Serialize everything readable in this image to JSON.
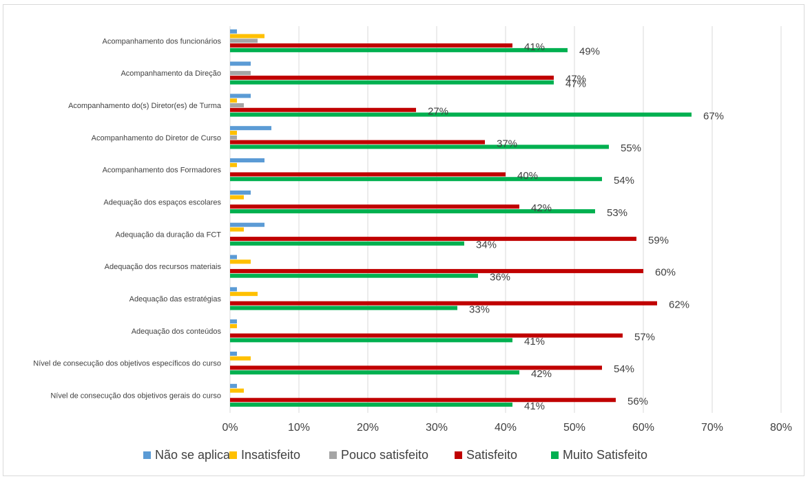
{
  "chart_data": {
    "type": "bar",
    "orientation": "horizontal",
    "title": "",
    "xlabel": "",
    "ylabel": "",
    "xlim": [
      0,
      0.8
    ],
    "x_ticks": [
      "0%",
      "10%",
      "20%",
      "30%",
      "40%",
      "50%",
      "60%",
      "70%",
      "80%"
    ],
    "grid": true,
    "legend_position": "bottom",
    "categories": [
      "Acompanhamento dos funcionários",
      "Acompanhamento da Direção",
      "Acompanhamento do(s) Diretor(es) de Turma",
      "Acompanhamento do Diretor de Curso",
      "Acompanhamento dos Formadores",
      "Adequação dos espaços escolares",
      "Adequação da duração da FCT",
      "Adequação dos recursos materiais",
      "Adequação das estratégias",
      "Adequação dos conteúdos",
      "Nível de consecução dos objetivos específicos do curso",
      "Nível de consecução dos objetivos gerais do curso"
    ],
    "series": [
      {
        "name": "Não se aplica",
        "color": "#5b9bd5",
        "values": [
          0.01,
          0.03,
          0.03,
          0.06,
          0.05,
          0.03,
          0.05,
          0.01,
          0.01,
          0.01,
          0.01,
          0.01
        ]
      },
      {
        "name": "Insatisfeito",
        "color": "#ffc000",
        "values": [
          0.05,
          0.0,
          0.01,
          0.01,
          0.01,
          0.02,
          0.02,
          0.03,
          0.04,
          0.01,
          0.03,
          0.02
        ]
      },
      {
        "name": "Pouco satisfeito",
        "color": "#a5a5a5",
        "values": [
          0.04,
          0.03,
          0.02,
          0.01,
          0.0,
          0.0,
          0.0,
          0.0,
          0.0,
          0.0,
          0.0,
          0.0
        ]
      },
      {
        "name": "Satisfeito",
        "color": "#c00000",
        "values": [
          0.41,
          0.47,
          0.27,
          0.37,
          0.4,
          0.42,
          0.59,
          0.6,
          0.62,
          0.57,
          0.54,
          0.56
        ],
        "data_labels": [
          "41%",
          "47%",
          "27%",
          "37%",
          "40%",
          "42%",
          "59%",
          "60%",
          "62%",
          "57%",
          "54%",
          "56%"
        ]
      },
      {
        "name": "Muito Satisfeito",
        "color": "#00b050",
        "values": [
          0.49,
          0.47,
          0.67,
          0.55,
          0.54,
          0.53,
          0.34,
          0.36,
          0.33,
          0.41,
          0.42,
          0.41
        ],
        "data_labels": [
          "49%",
          "47%",
          "67%",
          "55%",
          "54%",
          "53%",
          "34%",
          "36%",
          "33%",
          "41%",
          "42%",
          "41%"
        ]
      }
    ]
  }
}
